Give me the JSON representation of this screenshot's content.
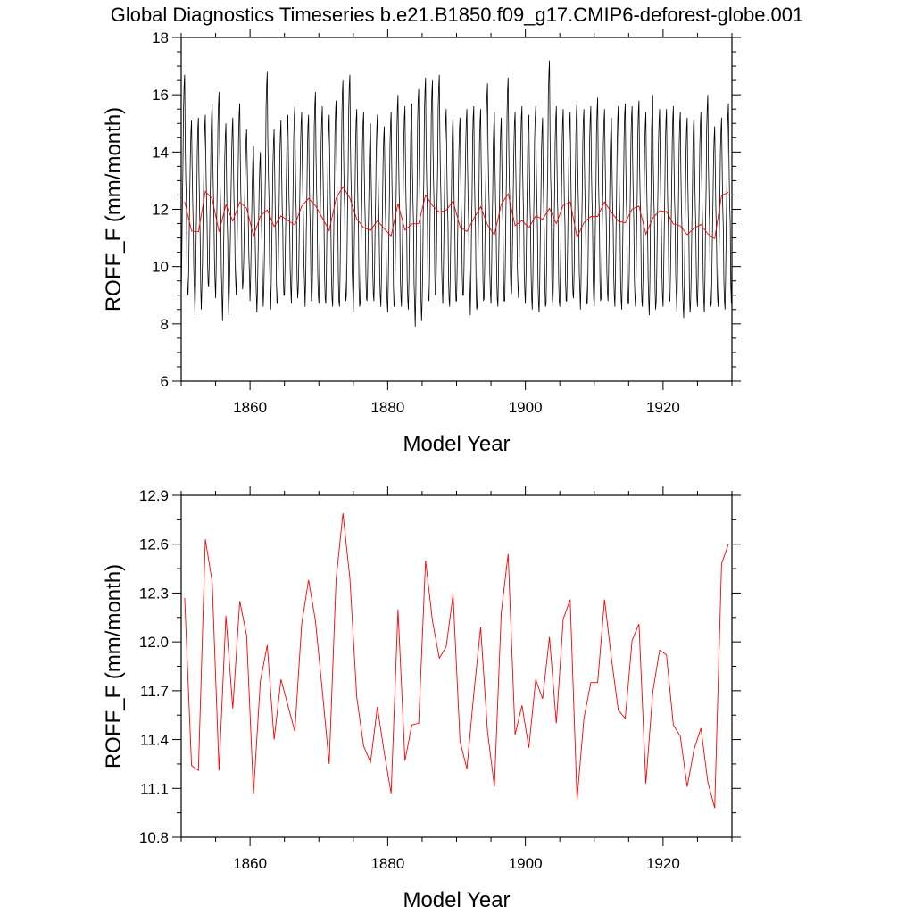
{
  "title": "Global Diagnostics Timeseries b.e21.B1850.f09_g17.CMIP6-deforest-globe.001",
  "chart_data": [
    {
      "type": "line",
      "xlabel": "Model Year",
      "ylabel": "ROFF_F (mm/month)",
      "xlim": [
        1850,
        1930
      ],
      "ylim": [
        6,
        18
      ],
      "xticks": [
        1860,
        1880,
        1900,
        1920
      ],
      "yticks": [
        6,
        8,
        10,
        12,
        14,
        16,
        18
      ],
      "grid": false,
      "series": [
        {
          "name": "monthly",
          "color": "#000000",
          "description": "monthly ROFF_F cycling each year between ~8.3-9.5 (min) and ~14.8-17.2 (max)",
          "annual_max": [
            16.7,
            15.1,
            15.2,
            15.3,
            15.7,
            16.1,
            15.0,
            15.2,
            15.7,
            14.8,
            14.2,
            14.0,
            16.8,
            14.8,
            15.1,
            15.3,
            15.6,
            15.4,
            15.3,
            16.1,
            15.6,
            15.3,
            15.8,
            16.5,
            16.7,
            15.5,
            15.4,
            15.0,
            15.3,
            14.9,
            15.4,
            16.0,
            15.6,
            15.7,
            16.2,
            16.6,
            16.5,
            16.7,
            15.5,
            15.3,
            15.2,
            15.5,
            15.6,
            15.5,
            16.4,
            15.4,
            15.2,
            16.6,
            15.4,
            15.6,
            15.3,
            15.6,
            15.2,
            17.2,
            15.6,
            15.5,
            15.4,
            15.8,
            15.5,
            15.6,
            15.9,
            15.5,
            15.2,
            15.6,
            15.7,
            15.6,
            15.8,
            15.4,
            16.0,
            15.5,
            15.5,
            15.6,
            15.4,
            15.2,
            15.3,
            15.4,
            16.0,
            14.9,
            15.2,
            15.7,
            17.5
          ],
          "annual_min": [
            9.0,
            9.0,
            8.3,
            9.2,
            9.3,
            8.9,
            8.1,
            9.2,
            9.0,
            9.5,
            8.8,
            8.4,
            9.2,
            8.5,
            8.8,
            9.0,
            8.7,
            9.2,
            8.6,
            8.8,
            8.7,
            8.7,
            8.6,
            8.6,
            9.0,
            8.4,
            8.7,
            8.8,
            8.8,
            8.6,
            8.4,
            8.7,
            8.6,
            8.5,
            7.9,
            8.7,
            8.8,
            9.1,
            8.7,
            8.6,
            8.8,
            9.0,
            8.3,
            8.6,
            8.9,
            8.7,
            8.6,
            8.8,
            9.1,
            8.9,
            8.7,
            8.5,
            8.4,
            8.7,
            8.6,
            8.6,
            8.8,
            8.9,
            8.5,
            8.7,
            8.6,
            8.9,
            8.8,
            8.6,
            8.5,
            8.7,
            8.6,
            8.6,
            8.3,
            8.8,
            8.6,
            8.8,
            8.4,
            8.2,
            8.7,
            8.6,
            8.4,
            8.7,
            8.6,
            8.5,
            10.4
          ]
        },
        {
          "name": "annual mean",
          "color": "#ff0000",
          "x": [
            1850,
            1851,
            1852,
            1853,
            1854,
            1855,
            1856,
            1857,
            1858,
            1859,
            1860,
            1861,
            1862,
            1863,
            1864,
            1865,
            1866,
            1867,
            1868,
            1869,
            1870,
            1871,
            1872,
            1873,
            1874,
            1875,
            1876,
            1877,
            1878,
            1879,
            1880,
            1881,
            1882,
            1883,
            1884,
            1885,
            1886,
            1887,
            1888,
            1889,
            1890,
            1891,
            1892,
            1893,
            1894,
            1895,
            1896,
            1897,
            1898,
            1899,
            1900,
            1901,
            1902,
            1903,
            1904,
            1905,
            1906,
            1907,
            1908,
            1909,
            1910,
            1911,
            1912,
            1913,
            1914,
            1915,
            1916,
            1917,
            1918,
            1919,
            1920,
            1921,
            1922,
            1923,
            1924,
            1925,
            1926,
            1927,
            1928,
            1929
          ],
          "values": [
            12.27,
            11.24,
            11.21,
            12.63,
            12.37,
            11.21,
            12.16,
            11.59,
            12.25,
            12.04,
            11.07,
            11.76,
            11.98,
            11.4,
            11.77,
            11.61,
            11.45,
            12.11,
            12.38,
            12.13,
            11.7,
            11.25,
            12.38,
            12.79,
            12.39,
            11.66,
            11.36,
            11.26,
            11.6,
            11.32,
            11.07,
            12.2,
            11.27,
            11.49,
            11.5,
            12.5,
            12.13,
            11.9,
            11.97,
            12.29,
            11.39,
            11.22,
            11.68,
            12.09,
            11.45,
            11.11,
            12.18,
            12.54,
            11.43,
            11.61,
            11.35,
            11.77,
            11.65,
            12.03,
            11.5,
            12.14,
            12.26,
            11.03,
            11.53,
            11.75,
            11.75,
            12.26,
            11.9,
            11.58,
            11.53,
            12.01,
            12.11,
            11.13,
            11.69,
            11.95,
            11.92,
            11.49,
            11.42,
            11.11,
            11.34,
            11.47,
            11.14,
            10.98,
            12.48,
            12.6
          ]
        }
      ]
    },
    {
      "type": "line",
      "xlabel": "Model Year",
      "ylabel": "ROFF_F (mm/month)",
      "xlim": [
        1850,
        1930
      ],
      "ylim": [
        10.8,
        12.9
      ],
      "xticks": [
        1860,
        1880,
        1900,
        1920
      ],
      "yticks": [
        "10.8",
        "11.1",
        "11.4",
        "11.7",
        "12.0",
        "12.3",
        "12.6",
        "12.9"
      ],
      "grid": false,
      "series": [
        {
          "name": "annual mean",
          "color": "#ff0000",
          "ref": "same as panel 1 annual mean"
        }
      ]
    }
  ]
}
